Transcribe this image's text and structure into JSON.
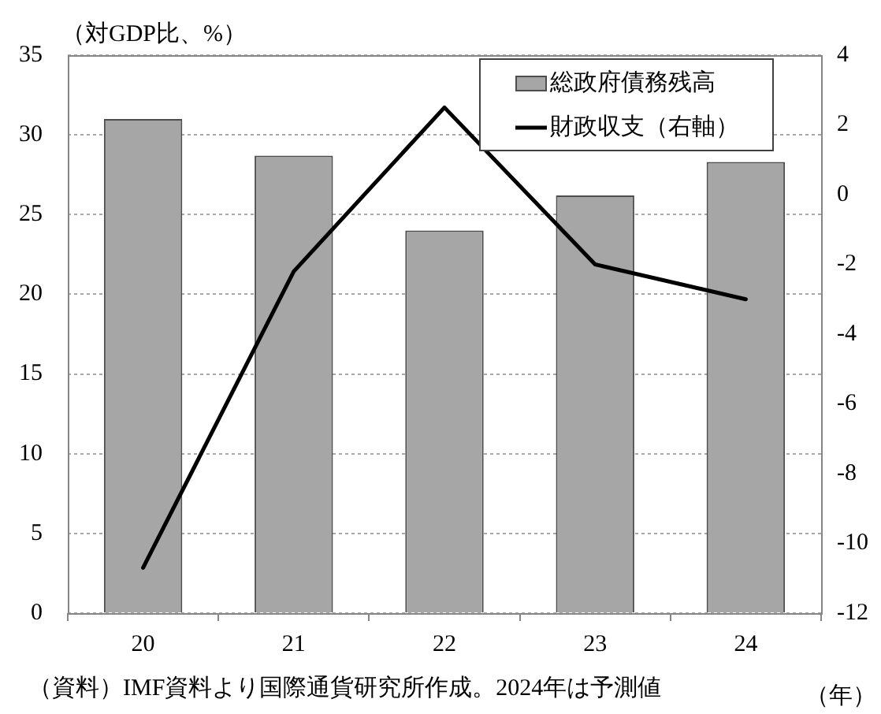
{
  "chart_data": {
    "type": "bar",
    "ylabel": "（対GDP比、%）",
    "xlabel": "（年）",
    "annotations": [
      "（資料）IMF資料より国際通貨研究所作成。2024年は予測値"
    ],
    "categories": [
      "20",
      "21",
      "22",
      "23",
      "24"
    ],
    "series": [
      {
        "name": "総政府債務残高",
        "color": "#a6a6a6",
        "values": [
          31,
          28.7,
          24,
          26.2,
          28.3
        ]
      },
      {
        "name": "財政収支（右軸）",
        "type": "line",
        "axis": "y2",
        "color": "#000000",
        "values": [
          -10.7,
          -2.2,
          2.5,
          -2,
          -3
        ]
      }
    ],
    "ylim": [
      0,
      35
    ],
    "yticks": [
      0,
      5,
      10,
      15,
      20,
      25,
      30,
      35
    ],
    "y2lim": [
      -12,
      4
    ],
    "y2ticks": [
      -12,
      -10,
      -8,
      -6,
      -4,
      -2,
      0,
      2,
      4
    ],
    "grid": "y",
    "legend": "top right",
    "marker": "none"
  }
}
